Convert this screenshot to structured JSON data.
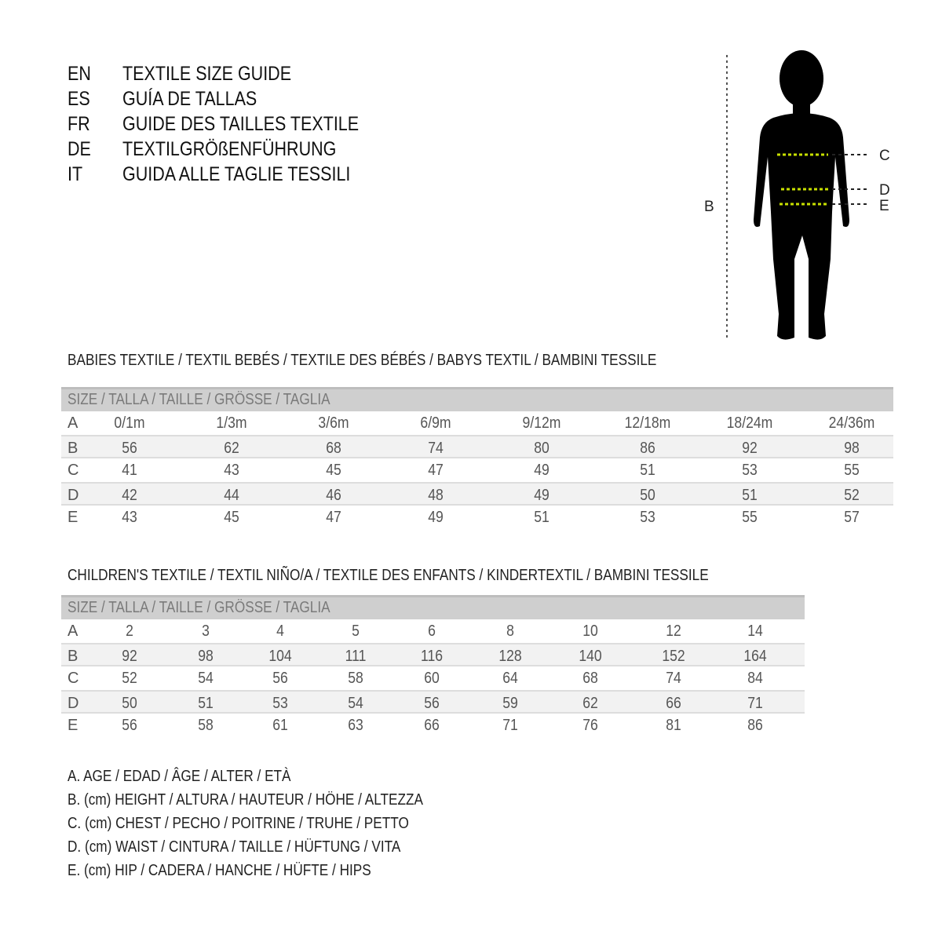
{
  "titles": [
    {
      "lang": "EN",
      "text": "TEXTILE SIZE GUIDE"
    },
    {
      "lang": "ES",
      "text": "GUÍA DE TALLAS"
    },
    {
      "lang": "FR",
      "text": "GUIDE DES TAILLES TEXTILE"
    },
    {
      "lang": "DE",
      "text": "TEXTILGRÖßENFÜHRUNG"
    },
    {
      "lang": "IT",
      "text": "GUIDA ALLE TAGLIE TESSILI"
    }
  ],
  "figure": {
    "labels": {
      "B": "B",
      "C": "C",
      "D": "D",
      "E": "E"
    },
    "accent_color": "#c8e000"
  },
  "babies": {
    "heading": "BABIES TEXTILE / TEXTIL BEBÉS / TEXTILE DES BÉBÉS / BABYS TEXTIL  / BAMBINI TESSILE",
    "size_header": "SIZE / TALLA / TAILLE / GRÖSSE / TAGLIA",
    "rows": [
      {
        "label": "A",
        "values": [
          "0/1m",
          "1/3m",
          "3/6m",
          "6/9m",
          "9/12m",
          "12/18m",
          "18/24m",
          "24/36m"
        ]
      },
      {
        "label": "B",
        "values": [
          "56",
          "62",
          "68",
          "74",
          "80",
          "86",
          "92",
          "98"
        ]
      },
      {
        "label": "C",
        "values": [
          "41",
          "43",
          "45",
          "47",
          "49",
          "51",
          "53",
          "55"
        ]
      },
      {
        "label": "D",
        "values": [
          "42",
          "44",
          "46",
          "48",
          "49",
          "50",
          "51",
          "52"
        ]
      },
      {
        "label": "E",
        "values": [
          "43",
          "45",
          "47",
          "49",
          "51",
          "53",
          "55",
          "57"
        ]
      }
    ]
  },
  "children": {
    "heading": "CHILDREN'S TEXTILE / TEXTIL NIÑO/A / TEXTILE DES ENFANTS / KINDERTEXTIL / BAMBINI TESSILE",
    "size_header": "SIZE / TALLA / TAILLE / GRÖSSE / TAGLIA",
    "rows": [
      {
        "label": "A",
        "values": [
          "2",
          "3",
          "4",
          "5",
          "6",
          "8",
          "10",
          "12",
          "14"
        ]
      },
      {
        "label": "B",
        "values": [
          "92",
          "98",
          "104",
          "111",
          "116",
          "128",
          "140",
          "152",
          "164"
        ]
      },
      {
        "label": "C",
        "values": [
          "52",
          "54",
          "56",
          "58",
          "60",
          "64",
          "68",
          "74",
          "84"
        ]
      },
      {
        "label": "D",
        "values": [
          "50",
          "51",
          "53",
          "54",
          "56",
          "59",
          "62",
          "66",
          "71"
        ]
      },
      {
        "label": "E",
        "values": [
          "56",
          "58",
          "61",
          "63",
          "66",
          "71",
          "76",
          "81",
          "86"
        ]
      }
    ]
  },
  "legend": [
    "A. AGE / EDAD / ÂGE / ALTER / ETÀ",
    "B. (cm) HEIGHT / ALTURA / HAUTEUR / HÖHE / ALTEZZA",
    "C. (cm) CHEST / PECHO / POITRINE / TRUHE / PETTO",
    "D. (cm) WAIST / CINTURA / TAILLE / HÜFTUNG / VITA",
    "E. (cm) HIP / CADERA / HANCHE / HÜFTE / HIPS"
  ]
}
